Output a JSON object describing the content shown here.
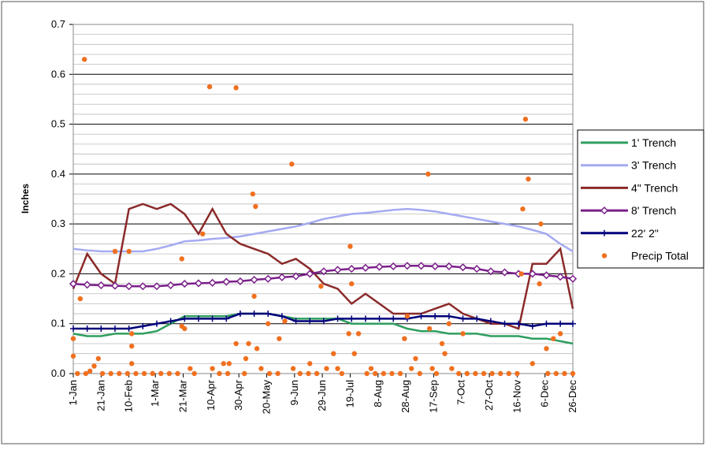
{
  "chart_data": {
    "type": "line",
    "ylabel": "Inches",
    "x": [
      0,
      10,
      20,
      30,
      40,
      50,
      60,
      70,
      80,
      90,
      100,
      110,
      120,
      130,
      140,
      150,
      160,
      170,
      180,
      190,
      200,
      210,
      220,
      230,
      240,
      250,
      260,
      270,
      280,
      290,
      300,
      310,
      320,
      330,
      340,
      350,
      359
    ],
    "xlim": [
      0,
      359
    ],
    "xticks": [
      {
        "value": 0,
        "label": "1-Jan"
      },
      {
        "value": 20,
        "label": "21-Jan"
      },
      {
        "value": 40,
        "label": "10-Feb"
      },
      {
        "value": 59,
        "label": "1-Mar"
      },
      {
        "value": 79,
        "label": "21-Mar"
      },
      {
        "value": 99,
        "label": "10-Apr"
      },
      {
        "value": 119,
        "label": "30-Apr"
      },
      {
        "value": 139,
        "label": "20-May"
      },
      {
        "value": 159,
        "label": "9-Jun"
      },
      {
        "value": 179,
        "label": "29-Jun"
      },
      {
        "value": 199,
        "label": "19-Jul"
      },
      {
        "value": 219,
        "label": "8-Aug"
      },
      {
        "value": 239,
        "label": "28-Aug"
      },
      {
        "value": 259,
        "label": "17-Sep"
      },
      {
        "value": 279,
        "label": "7-Oct"
      },
      {
        "value": 299,
        "label": "27-Oct"
      },
      {
        "value": 319,
        "label": "16-Nov"
      },
      {
        "value": 339,
        "label": "6-Dec"
      },
      {
        "value": 359,
        "label": "26-Dec"
      }
    ],
    "ylim": [
      0,
      0.7
    ],
    "yticks": [
      {
        "value": 0,
        "label": "0.0"
      },
      0.1,
      0.2,
      0.3,
      0.4,
      0.5,
      0.6,
      0.7
    ],
    "grid": true,
    "legend": "right",
    "series": [
      {
        "name": "1' Trench",
        "color": "#2e9e5e",
        "marker": "none",
        "values": [
          0.08,
          0.075,
          0.075,
          0.08,
          0.08,
          0.08,
          0.085,
          0.1,
          0.115,
          0.115,
          0.115,
          0.115,
          0.12,
          0.12,
          0.12,
          0.115,
          0.11,
          0.11,
          0.11,
          0.11,
          0.1,
          0.1,
          0.1,
          0.1,
          0.09,
          0.085,
          0.085,
          0.08,
          0.08,
          0.08,
          0.075,
          0.075,
          0.075,
          0.07,
          0.07,
          0.065,
          0.06
        ]
      },
      {
        "name": "3' Trench",
        "color": "#a4aaf2",
        "marker": "none",
        "values": [
          0.25,
          0.247,
          0.245,
          0.245,
          0.245,
          0.245,
          0.25,
          0.257,
          0.265,
          0.267,
          0.27,
          0.272,
          0.275,
          0.28,
          0.285,
          0.29,
          0.295,
          0.302,
          0.31,
          0.315,
          0.32,
          0.322,
          0.325,
          0.328,
          0.33,
          0.328,
          0.325,
          0.32,
          0.315,
          0.31,
          0.305,
          0.3,
          0.295,
          0.288,
          0.28,
          0.26,
          0.245
        ]
      },
      {
        "name": "4\" Trench",
        "color": "#8b2a2a",
        "marker": "none",
        "values": [
          0.17,
          0.24,
          0.2,
          0.18,
          0.33,
          0.34,
          0.33,
          0.34,
          0.32,
          0.28,
          0.33,
          0.28,
          0.26,
          0.25,
          0.24,
          0.22,
          0.23,
          0.21,
          0.18,
          0.17,
          0.14,
          0.16,
          0.14,
          0.12,
          0.12,
          0.12,
          0.13,
          0.14,
          0.12,
          0.11,
          0.1,
          0.1,
          0.09,
          0.22,
          0.22,
          0.25,
          0.13
        ]
      },
      {
        "name": "8' Trench",
        "color": "#7a1f8a",
        "marker": "diamond",
        "values": [
          0.18,
          0.178,
          0.177,
          0.176,
          0.175,
          0.175,
          0.175,
          0.177,
          0.18,
          0.181,
          0.182,
          0.184,
          0.185,
          0.188,
          0.19,
          0.193,
          0.195,
          0.2,
          0.205,
          0.208,
          0.21,
          0.212,
          0.214,
          0.215,
          0.216,
          0.216,
          0.215,
          0.215,
          0.213,
          0.21,
          0.205,
          0.203,
          0.2,
          0.2,
          0.197,
          0.194,
          0.19
        ]
      },
      {
        "name": "22' 2\"",
        "color": "#00007a",
        "marker": "plus",
        "values": [
          0.09,
          0.09,
          0.09,
          0.09,
          0.09,
          0.095,
          0.1,
          0.105,
          0.11,
          0.11,
          0.11,
          0.11,
          0.12,
          0.12,
          0.12,
          0.115,
          0.105,
          0.105,
          0.105,
          0.11,
          0.11,
          0.11,
          0.11,
          0.11,
          0.11,
          0.115,
          0.115,
          0.115,
          0.11,
          0.11,
          0.105,
          0.1,
          0.1,
          0.095,
          0.1,
          0.1,
          0.1
        ]
      },
      {
        "name": "Precip Total",
        "color": "#f07020",
        "type": "scatter",
        "x": [
          0,
          0,
          5,
          8,
          12,
          15,
          18,
          30,
          40,
          42,
          42,
          42,
          78,
          78,
          80,
          84,
          93,
          98,
          100,
          108,
          112,
          117,
          117,
          124,
          126,
          129,
          130,
          131,
          132,
          135,
          140,
          148,
          152,
          157,
          158,
          170,
          178,
          182,
          187,
          190,
          198,
          199,
          200,
          202,
          205,
          214,
          238,
          240,
          243,
          246,
          255,
          256,
          258,
          265,
          267,
          270,
          272,
          280,
          322,
          323,
          325,
          327,
          330,
          335,
          336,
          340,
          345,
          350,
          3,
          9,
          21,
          27,
          33,
          39,
          45,
          51,
          57,
          63,
          69,
          75,
          87,
          105,
          111,
          123,
          141,
          147,
          163,
          169,
          175,
          193,
          211,
          217,
          223,
          229,
          235,
          249,
          261,
          277,
          283,
          289,
          295,
          301,
          307,
          313,
          319,
          341,
          347,
          353,
          359
        ],
        "values": [
          0.07,
          0.035,
          0.15,
          0.63,
          0.005,
          0.015,
          0.03,
          0.245,
          0.245,
          0.08,
          0.055,
          0.02,
          0.23,
          0.095,
          0.09,
          0.01,
          0.28,
          0.575,
          0.01,
          0.02,
          0.02,
          0.573,
          0.06,
          0.03,
          0.06,
          0.36,
          0.155,
          0.335,
          0.05,
          0.01,
          0.1,
          0.07,
          0.105,
          0.42,
          0.01,
          0.02,
          0.175,
          0.01,
          0.04,
          0.01,
          0.08,
          0.255,
          0.18,
          0.04,
          0.08,
          0.01,
          0.07,
          0.115,
          0.01,
          0.03,
          0.4,
          0.09,
          0.01,
          0.06,
          0.04,
          0.1,
          0.01,
          0.08,
          0.2,
          0.33,
          0.51,
          0.39,
          0.02,
          0.18,
          0.3,
          0.05,
          0.07,
          0.08,
          0,
          0,
          0,
          0,
          0,
          0,
          0,
          0,
          0,
          0,
          0,
          0,
          0,
          0,
          0,
          0,
          0,
          0,
          0,
          0,
          0,
          0,
          0,
          0,
          0,
          0,
          0,
          0,
          0,
          0,
          0,
          0,
          0,
          0,
          0,
          0,
          0,
          0,
          0,
          0,
          0
        ]
      }
    ]
  }
}
